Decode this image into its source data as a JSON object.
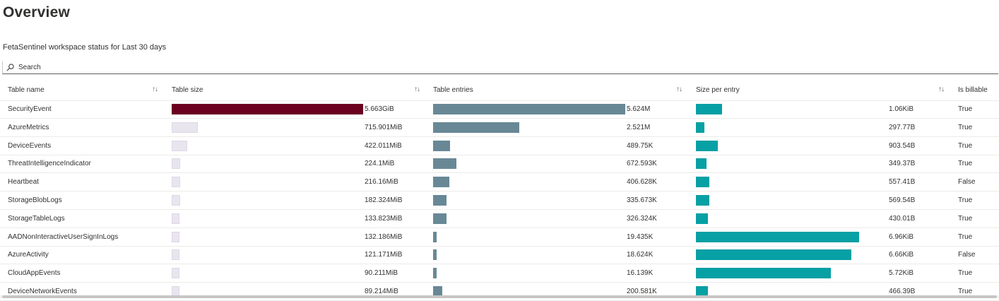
{
  "page_title": "Overview",
  "subtitle": "FetaSentinel workspace status for Last 30 days",
  "search": {
    "placeholder": "Search",
    "icon": "search-icon"
  },
  "columns": {
    "table_name": "Table name",
    "table_size": "Table size",
    "table_entries": "Table entries",
    "size_per_entry": "Size per entry",
    "is_billable": "Is billable",
    "sort_glyph": "↑↓"
  },
  "colors": {
    "size_bar_top": "#6b0021",
    "size_bar": "#e9e5ef",
    "entries_bar": "#688896",
    "per_entry_bar": "#07a0a4"
  },
  "rows": [
    {
      "name": "SecurityEvent",
      "size": "5.663GiB",
      "size_frac": 1.0,
      "entries": "5.624M",
      "entries_frac": 1.0,
      "per_entry": "1.06KiB",
      "per_frac": 0.16,
      "billable": "True"
    },
    {
      "name": "AzureMetrics",
      "size": "715.901MiB",
      "size_frac": 0.135,
      "entries": "2.521M",
      "entries_frac": 0.448,
      "per_entry": "297.77B",
      "per_frac": 0.052,
      "billable": "True"
    },
    {
      "name": "DeviceEvents",
      "size": "422.011MiB",
      "size_frac": 0.08,
      "entries": "489.75K",
      "entries_frac": 0.087,
      "per_entry": "903.54B",
      "per_frac": 0.133,
      "billable": "True"
    },
    {
      "name": "ThreatIntelligenceIndicator",
      "size": "224.1MiB",
      "size_frac": 0.045,
      "entries": "672.593K",
      "entries_frac": 0.12,
      "per_entry": "349.37B",
      "per_frac": 0.065,
      "billable": "True"
    },
    {
      "name": "Heartbeat",
      "size": "216.16MiB",
      "size_frac": 0.045,
      "entries": "406.628K",
      "entries_frac": 0.084,
      "per_entry": "557.41B",
      "per_frac": 0.082,
      "billable": "False"
    },
    {
      "name": "StorageBlobLogs",
      "size": "182.324MiB",
      "size_frac": 0.045,
      "entries": "335.673K",
      "entries_frac": 0.069,
      "per_entry": "569.54B",
      "per_frac": 0.082,
      "billable": "True"
    },
    {
      "name": "StorageTableLogs",
      "size": "133.823MiB",
      "size_frac": 0.037,
      "entries": "326.324K",
      "entries_frac": 0.069,
      "per_entry": "430.01B",
      "per_frac": 0.074,
      "billable": "True"
    },
    {
      "name": "AADNonInteractiveUserSignInLogs",
      "size": "132.186MiB",
      "size_frac": 0.037,
      "entries": "19.435K",
      "entries_frac": 0.018,
      "per_entry": "6.96KiB",
      "per_frac": 1.0,
      "billable": "True"
    },
    {
      "name": "AzureActivity",
      "size": "121.171MiB",
      "size_frac": 0.037,
      "entries": "18.624K",
      "entries_frac": 0.018,
      "per_entry": "6.66KiB",
      "per_frac": 0.953,
      "billable": "False"
    },
    {
      "name": "CloudAppEvents",
      "size": "90.211MiB",
      "size_frac": 0.026,
      "entries": "16.139K",
      "entries_frac": 0.018,
      "per_entry": "5.72KiB",
      "per_frac": 0.826,
      "billable": "True"
    },
    {
      "name": "DeviceNetworkEvents",
      "size": "89.214MiB",
      "size_frac": 0.026,
      "entries": "200.581K",
      "entries_frac": 0.048,
      "per_entry": "466.39B",
      "per_frac": 0.074,
      "billable": "True"
    }
  ]
}
